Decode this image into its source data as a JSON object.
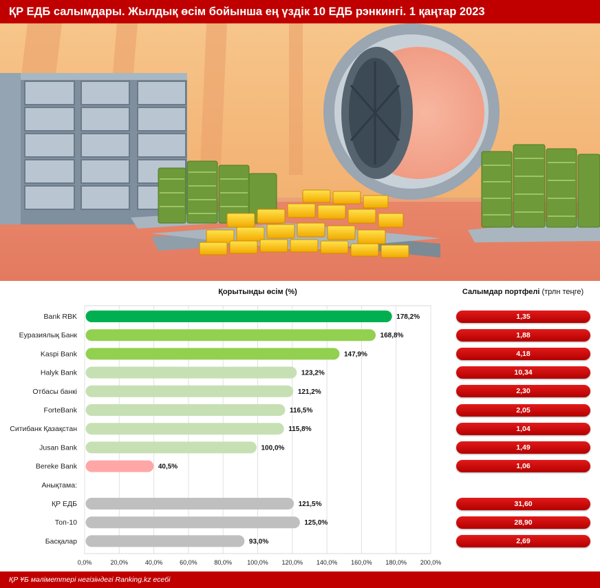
{
  "header": {
    "title": "ҚР ЕДБ салымдары. Жылдық өсім бойынша ең үздік 10 ЕДБ рэнкингі. 1 қаңтар 2023"
  },
  "chart_data": {
    "type": "bar",
    "orientation": "horizontal",
    "title": "Қорытынды өсім (%)",
    "section_label": "Анықтама:",
    "categories": [
      "Bank RBK",
      "Еуразиялық Банк",
      "Kaspi Bank",
      "Halyk Bank",
      "Отбасы банкі",
      "ForteBank",
      "Ситибанк Қазақстан",
      "Jusan Bank",
      "Bereke Bank"
    ],
    "values": [
      178.2,
      168.8,
      147.9,
      123.2,
      121.2,
      116.5,
      115.8,
      100.0,
      40.5
    ],
    "value_labels": [
      "178,2%",
      "168,8%",
      "147,9%",
      "123,2%",
      "121,2%",
      "116,5%",
      "115,8%",
      "100,0%",
      "40,5%"
    ],
    "bar_colors": [
      "#00b050",
      "#92d050",
      "#92d050",
      "#c6e0b4",
      "#c6e0b4",
      "#c6e0b4",
      "#c6e0b4",
      "#c6e0b4",
      "#ffa7a7"
    ],
    "reference_categories": [
      "ҚР ЕДБ",
      "Топ-10",
      "Басқалар"
    ],
    "reference_values": [
      121.5,
      125.0,
      93.0
    ],
    "reference_labels": [
      "121,5%",
      "125,0%",
      "93,0%"
    ],
    "reference_color": "#bfbfbf",
    "xlim": [
      0,
      200
    ],
    "x_ticks": [
      0,
      20,
      40,
      60,
      80,
      100,
      120,
      140,
      160,
      180,
      200
    ],
    "x_tick_labels": [
      "0,0%",
      "20,0%",
      "40,0%",
      "60,0%",
      "80,0%",
      "100,0%",
      "120,0%",
      "140,0%",
      "160,0%",
      "180,0%",
      "200,0%"
    ],
    "grid": true
  },
  "portfolio": {
    "title_bold": "Салымдар портфелі",
    "title_unit": "(трлн теңге)",
    "values": [
      "1,35",
      "1,88",
      "4,18",
      "10,34",
      "2,30",
      "2,05",
      "1,04",
      "1,49",
      "1,06"
    ],
    "reference_values": [
      "31,60",
      "28,90",
      "2,69"
    ]
  },
  "footer": {
    "text": "ҚР ҰБ мәліметтері негізіндегі Ranking.kz есебі"
  }
}
